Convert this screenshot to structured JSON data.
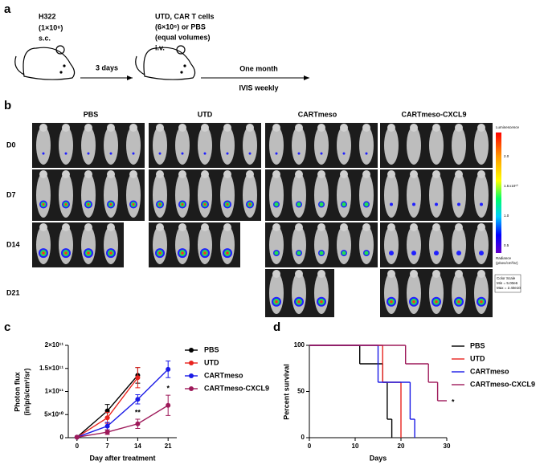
{
  "panel_labels": [
    "a",
    "b",
    "c",
    "d"
  ],
  "schematic": {
    "injection1": [
      "H322",
      "(1×10⁶)",
      "s.c."
    ],
    "wait": "3 days",
    "injection2": [
      "UTD, CAR T cells",
      "(6×10⁶) or PBS",
      "(equal volumes)",
      "i.v."
    ],
    "duration": "One month",
    "imaging": "IVIS weekly"
  },
  "imaging": {
    "columns": [
      "PBS",
      "UTD",
      "CARTmeso",
      "CARTmeso-CXCL9"
    ],
    "rows": [
      "D0",
      "D7",
      "D14",
      "D21"
    ],
    "colorbar": {
      "title": "Luminescence",
      "tick_labels": [
        "2.0",
        "1.5",
        "1.0",
        "0.5"
      ],
      "multiplier": "x10¹⁰",
      "unit": [
        "Radiance",
        "(p/sec/cm²/sr)"
      ],
      "scale": [
        "Color Scale",
        "Min = 5.00e6",
        "Max = 2.40e10"
      ]
    }
  },
  "chart_data": [
    {
      "type": "line",
      "xlabel": "Day after treatment",
      "ylabel": [
        "Photon flux",
        "(in/p/s/cm²/sr)"
      ],
      "x": [
        0,
        7,
        14,
        21
      ],
      "xlim": [
        -2,
        23
      ],
      "xticks": [
        0,
        7,
        14,
        21
      ],
      "ylim": [
        0,
        200000000000
      ],
      "yticks": [
        0,
        {
          "value": 50000000000,
          "label": "5×10¹⁰"
        },
        {
          "value": 100000000000,
          "label": "1×10¹¹"
        },
        {
          "value": 150000000000,
          "label": "1.5×10¹¹"
        },
        {
          "value": 200000000000,
          "label": "2×10¹¹"
        }
      ],
      "legend": "right",
      "series": [
        {
          "name": "PBS",
          "color": "#000000",
          "values": [
            1000000000,
            58000000000,
            135000000000,
            null
          ],
          "errors": [
            0,
            14000000000,
            17000000000,
            null
          ]
        },
        {
          "name": "UTD",
          "color": "#e8231e",
          "values": [
            1000000000,
            43000000000,
            130000000000,
            null
          ],
          "errors": [
            0,
            12000000000,
            22000000000,
            null
          ]
        },
        {
          "name": "CARTmeso",
          "color": "#1a1ae6",
          "values": [
            1000000000,
            25000000000,
            83000000000,
            148000000000
          ],
          "errors": [
            0,
            8000000000,
            10000000000,
            18000000000
          ]
        },
        {
          "name": "CARTmeso-CXCL9",
          "color": "#9e1a5a",
          "values": [
            1000000000,
            12000000000,
            30000000000,
            70000000000
          ],
          "errors": [
            0,
            5000000000,
            10000000000,
            22000000000
          ]
        }
      ],
      "annotations": [
        {
          "text": "**",
          "x": 14
        },
        {
          "text": "*",
          "x": 21
        }
      ]
    },
    {
      "type": "step",
      "xlabel": "Days",
      "ylabel": "Percent survival",
      "xlim": [
        0,
        30
      ],
      "xticks": [
        0,
        10,
        20,
        30
      ],
      "ylim": [
        0,
        100
      ],
      "yticks": [
        0,
        50,
        100
      ],
      "legend": "right",
      "series": [
        {
          "name": "PBS",
          "color": "#000000",
          "x": [
            0,
            11,
            16,
            17,
            18
          ],
          "values": [
            100,
            80,
            60,
            20,
            0
          ]
        },
        {
          "name": "UTD",
          "color": "#e8231e",
          "x": [
            0,
            16,
            20
          ],
          "values": [
            100,
            60,
            0
          ]
        },
        {
          "name": "CARTmeso",
          "color": "#1a1ae6",
          "x": [
            0,
            15,
            22,
            23
          ],
          "values": [
            100,
            60,
            20,
            0
          ]
        },
        {
          "name": "CARTmeso-CXCL9",
          "color": "#9e1a5a",
          "x": [
            0,
            21,
            26,
            28,
            30
          ],
          "values": [
            100,
            80,
            60,
            40,
            40
          ]
        }
      ],
      "annotations": [
        {
          "text": "*",
          "x": 30
        }
      ]
    }
  ]
}
